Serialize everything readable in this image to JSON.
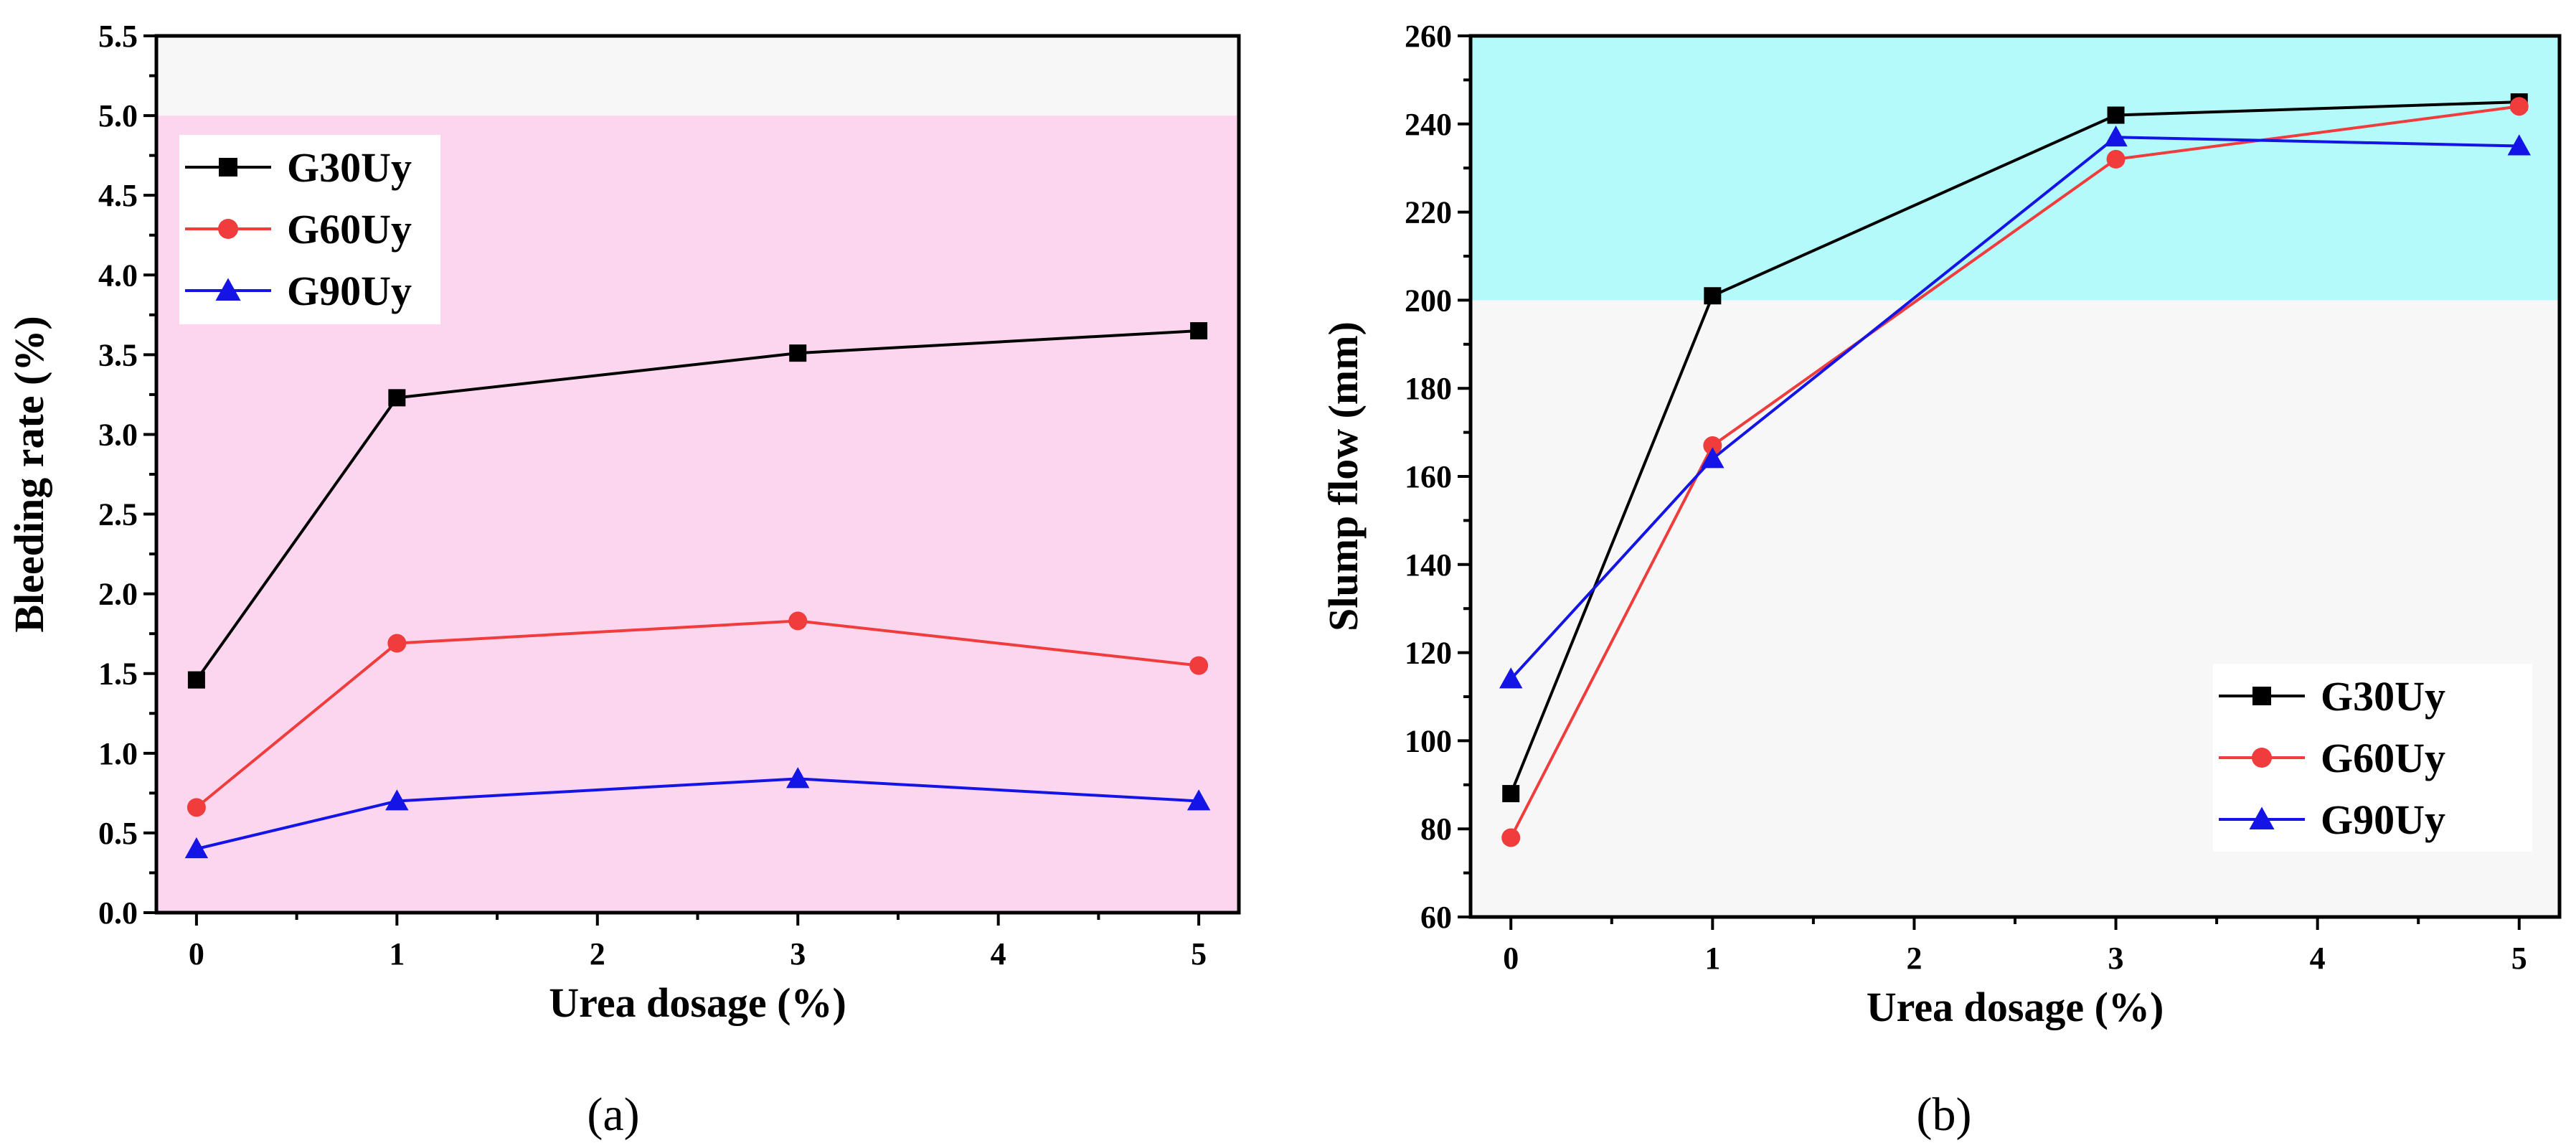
{
  "chart_data": [
    {
      "type": "line",
      "caption": "(a)",
      "xlabel": "Urea dosage (%)",
      "ylabel": "Bleeding rate (%)",
      "xlim": [
        -0.2,
        5.2
      ],
      "ylim": [
        0.0,
        5.5
      ],
      "xticks": [
        0,
        1,
        2,
        3,
        4,
        5
      ],
      "xtick_labels": [
        "0",
        "1",
        "2",
        "3",
        "4",
        "5"
      ],
      "yticks": [
        0.0,
        0.5,
        1.0,
        1.5,
        2.0,
        2.5,
        3.0,
        3.5,
        4.0,
        4.5,
        5.0,
        5.5
      ],
      "ytick_labels": [
        "0.0",
        "0.5",
        "1.0",
        "1.5",
        "2.0",
        "2.5",
        "3.0",
        "3.5",
        "4.0",
        "4.5",
        "5.0",
        "5.5"
      ],
      "shaded_band": {
        "y_from": 0.0,
        "y_to": 5.0,
        "color": "#fcd6ee"
      },
      "legend_position": "top-left",
      "x": [
        0,
        1,
        3,
        5
      ],
      "series": [
        {
          "name": "G30Uy",
          "color": "#000000",
          "marker": "square",
          "values": [
            1.46,
            3.23,
            3.51,
            3.65
          ]
        },
        {
          "name": "G60Uy",
          "color": "#f03c3c",
          "marker": "circle",
          "values": [
            0.66,
            1.69,
            1.83,
            1.55
          ]
        },
        {
          "name": "G90Uy",
          "color": "#1414e6",
          "marker": "triangle",
          "values": [
            0.4,
            0.7,
            0.84,
            0.7
          ]
        }
      ]
    },
    {
      "type": "line",
      "caption": "(b)",
      "xlabel": "Urea dosage (%)",
      "ylabel": "Slump flow (mm)",
      "xlim": [
        -0.2,
        5.2
      ],
      "ylim": [
        60,
        260
      ],
      "xticks": [
        0,
        1,
        2,
        3,
        4,
        5
      ],
      "xtick_labels": [
        "0",
        "1",
        "2",
        "3",
        "4",
        "5"
      ],
      "yticks": [
        60,
        80,
        100,
        120,
        140,
        160,
        180,
        200,
        220,
        240,
        260
      ],
      "ytick_labels": [
        "60",
        "80",
        "100",
        "120",
        "140",
        "160",
        "180",
        "200",
        "220",
        "240",
        "260"
      ],
      "shaded_band": {
        "y_from": 200,
        "y_to": 260,
        "color": "#b4fafa"
      },
      "legend_position": "bottom-right",
      "x": [
        0,
        1,
        3,
        5
      ],
      "series": [
        {
          "name": "G30Uy",
          "color": "#000000",
          "marker": "square",
          "values": [
            88,
            201,
            242,
            245
          ]
        },
        {
          "name": "G60Uy",
          "color": "#f03c3c",
          "marker": "circle",
          "values": [
            78,
            167,
            232,
            244
          ]
        },
        {
          "name": "G90Uy",
          "color": "#1414e6",
          "marker": "triangle",
          "values": [
            114,
            164,
            237,
            235
          ]
        }
      ]
    }
  ]
}
